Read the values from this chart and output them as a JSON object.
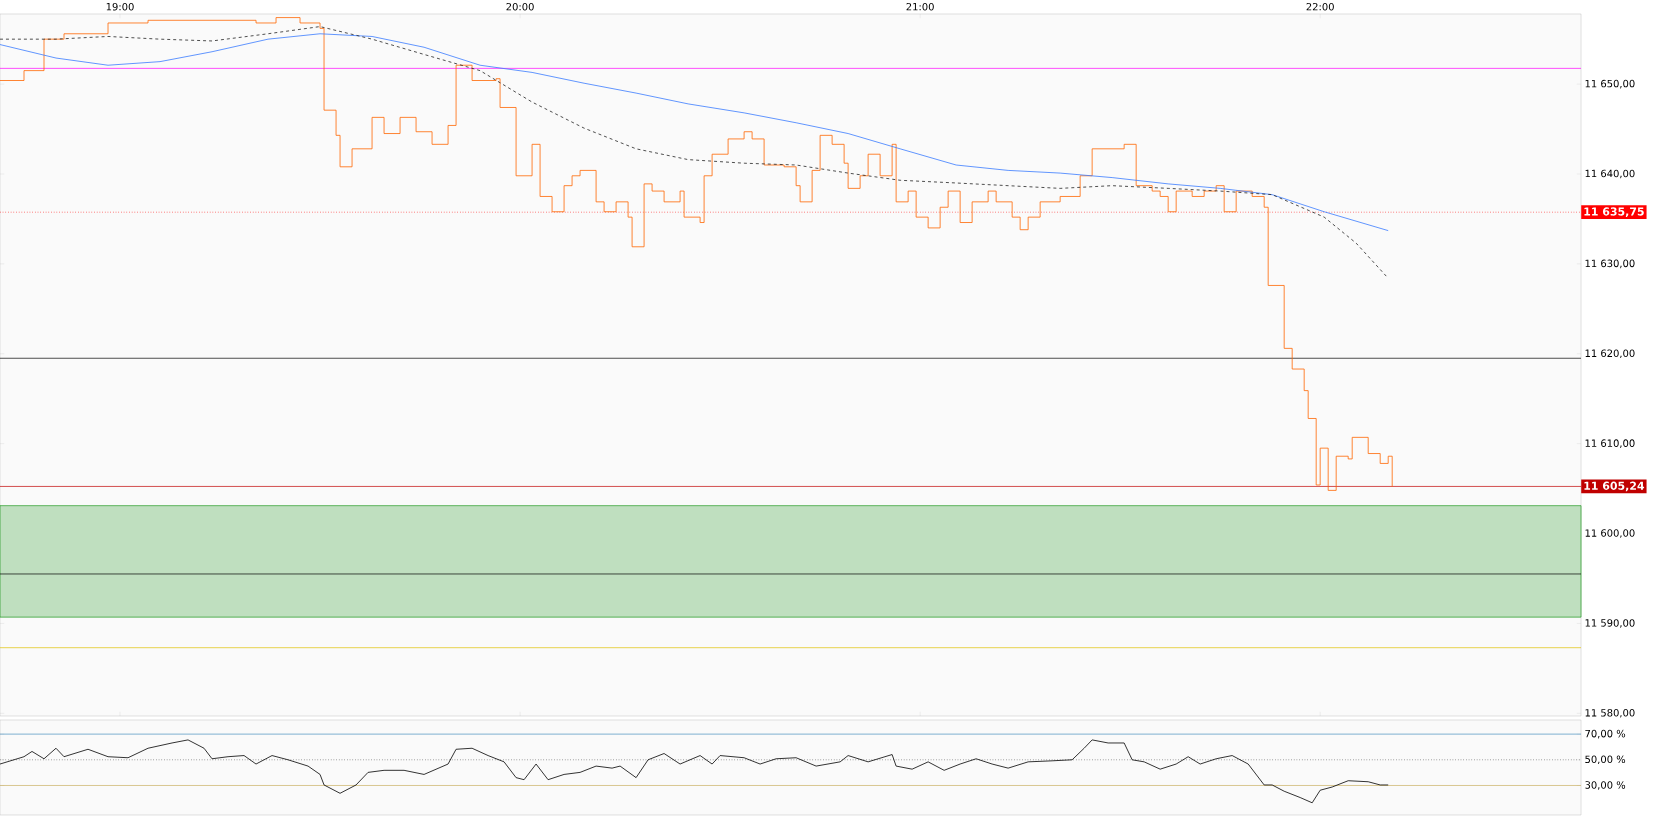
{
  "chart_data": [
    {
      "type": "step",
      "xlim": [
        18.7,
        22.652
      ],
      "ylim": [
        11579.7,
        11657.8
      ],
      "xticks": [
        {
          "value": 19,
          "label": "19:00"
        },
        {
          "value": 20,
          "label": "20:00"
        },
        {
          "value": 21,
          "label": "21:00"
        },
        {
          "value": 22,
          "label": "22:00"
        }
      ],
      "yticks": [
        {
          "value": 11580,
          "label": "11 580,00"
        },
        {
          "value": 11590,
          "label": "11 590,00"
        },
        {
          "value": 11600,
          "label": "11 600,00"
        },
        {
          "value": 11610,
          "label": "11 610,00"
        },
        {
          "value": 11620,
          "label": "11 620,00"
        },
        {
          "value": 11630,
          "label": "11 630,00"
        },
        {
          "value": 11640,
          "label": "11 640,00"
        },
        {
          "value": 11650,
          "label": "11 650,00"
        }
      ],
      "series": [
        {
          "type": "step",
          "color": "#ff6600",
          "x": [
            18.7,
            18.76,
            18.81,
            18.86,
            18.97,
            19.07,
            19.23,
            19.34,
            19.39,
            19.45,
            19.5,
            19.51,
            19.54,
            19.55,
            19.58,
            19.62,
            19.63,
            19.66,
            19.7,
            19.74,
            19.78,
            19.82,
            19.84,
            19.88,
            19.94,
            19.95,
            19.97,
            19.99,
            20.03,
            20.05,
            20.08,
            20.11,
            20.13,
            20.15,
            20.19,
            20.21,
            20.24,
            20.27,
            20.28,
            20.31,
            20.33,
            20.36,
            20.4,
            20.41,
            20.45,
            20.46,
            20.48,
            20.52,
            20.56,
            20.58,
            20.61,
            20.66,
            20.69,
            20.7,
            20.73,
            20.75,
            20.78,
            20.81,
            20.82,
            20.85,
            20.87,
            20.9,
            20.93,
            20.94,
            20.97,
            20.99,
            21.02,
            21.05,
            21.07,
            21.1,
            21.13,
            21.17,
            21.19,
            21.23,
            21.25,
            21.27,
            21.3,
            21.35,
            21.4,
            21.43,
            21.48,
            21.51,
            21.54,
            21.58,
            21.6,
            21.62,
            21.64,
            21.68,
            21.71,
            21.74,
            21.76,
            21.79,
            21.83,
            21.86,
            21.87,
            21.9,
            21.91,
            21.93,
            21.96,
            21.97,
            21.99,
            22.0,
            22.02,
            22.04,
            22.07,
            22.08,
            22.12,
            22.15,
            22.17,
            22.18
          ],
          "values": [
            11650.4,
            11651.5,
            11655.0,
            11655.6,
            11656.8,
            11657.1,
            11657.1,
            11656.8,
            11657.4,
            11656.8,
            11656.2,
            11647.1,
            11644.3,
            11640.8,
            11642.8,
            11642.8,
            11646.3,
            11644.5,
            11646.3,
            11644.7,
            11643.3,
            11645.4,
            11652.1,
            11650.4,
            11650.6,
            11647.4,
            11647.4,
            11639.8,
            11643.3,
            11637.5,
            11635.8,
            11638.7,
            11639.8,
            11640.4,
            11636.9,
            11635.8,
            11636.9,
            11635.2,
            11631.9,
            11638.9,
            11638.1,
            11636.9,
            11638.1,
            11635.2,
            11634.6,
            11639.8,
            11642.2,
            11643.9,
            11644.7,
            11643.9,
            11641.0,
            11640.8,
            11638.7,
            11636.9,
            11640.4,
            11644.3,
            11643.3,
            11641.2,
            11638.4,
            11639.8,
            11642.2,
            11639.8,
            11643.3,
            11636.9,
            11638.1,
            11635.2,
            11634.0,
            11636.3,
            11638.1,
            11634.6,
            11636.9,
            11638.1,
            11636.9,
            11635.2,
            11633.8,
            11635.2,
            11636.9,
            11637.5,
            11639.8,
            11642.8,
            11642.8,
            11643.3,
            11638.7,
            11638.1,
            11637.5,
            11635.8,
            11638.1,
            11637.5,
            11638.1,
            11638.7,
            11635.8,
            11638.1,
            11637.5,
            11636.3,
            11627.6,
            11627.6,
            11620.6,
            11618.3,
            11615.9,
            11612.8,
            11605.4,
            11609.5,
            11604.8,
            11608.6,
            11608.3,
            11610.7,
            11608.9,
            11607.8,
            11608.6,
            11605.2
          ]
        },
        {
          "type": "line",
          "color": "#3a7bff",
          "x": [
            18.7,
            18.84,
            18.97,
            19.1,
            19.23,
            19.37,
            19.5,
            19.63,
            19.76,
            19.9,
            20.03,
            20.16,
            20.29,
            20.42,
            20.56,
            20.69,
            20.82,
            20.95,
            21.09,
            21.22,
            21.35,
            21.48,
            21.62,
            21.75,
            21.88,
            22.01,
            22.17
          ],
          "values": [
            11654.4,
            11652.9,
            11652.1,
            11652.5,
            11653.6,
            11655.0,
            11655.6,
            11655.3,
            11654.1,
            11652.1,
            11651.3,
            11650.1,
            11649.0,
            11647.8,
            11646.8,
            11645.7,
            11644.5,
            11642.8,
            11641.0,
            11640.4,
            11640.1,
            11639.6,
            11638.9,
            11638.4,
            11637.7,
            11635.8,
            11633.7
          ]
        },
        {
          "type": "line",
          "color": "#222222",
          "line_style": "dashed",
          "x": [
            18.7,
            18.84,
            18.97,
            19.1,
            19.23,
            19.37,
            19.5,
            19.63,
            19.76,
            19.9,
            20.03,
            20.16,
            20.29,
            20.42,
            20.56,
            20.69,
            20.82,
            20.95,
            21.09,
            21.22,
            21.35,
            21.48,
            21.62,
            21.75,
            21.88,
            22.01,
            22.09,
            22.17
          ],
          "values": [
            11655.0,
            11655.0,
            11655.3,
            11655.0,
            11654.8,
            11655.6,
            11656.4,
            11655.0,
            11653.3,
            11651.5,
            11648.0,
            11645.1,
            11642.8,
            11641.6,
            11641.2,
            11641.0,
            11640.1,
            11639.3,
            11639.0,
            11638.7,
            11638.4,
            11638.7,
            11638.4,
            11638.1,
            11637.7,
            11635.2,
            11632.3,
            11628.4
          ]
        }
      ],
      "ref_lines": [
        {
          "axis": "y",
          "value": 11651.75,
          "color": "#ff00ff"
        },
        {
          "axis": "y",
          "value": 11635.75,
          "label": "11 635,75",
          "color": "#ff0000",
          "line_style": "dotted"
        },
        {
          "axis": "y",
          "value": 11619.5,
          "color": "#000000"
        },
        {
          "axis": "y",
          "value": 11605.24,
          "label": "11 605,24",
          "color": "#c00000"
        },
        {
          "axis": "y",
          "value": 11595.5,
          "color": "#000000"
        },
        {
          "axis": "y",
          "value": 11587.3,
          "color": "#e0c000"
        }
      ],
      "bands": [
        {
          "axis": "y",
          "from": 11590.7,
          "to": 11603.1,
          "color": "#bfdfbf"
        }
      ]
    },
    {
      "type": "line",
      "xlim": [
        18.7,
        22.652
      ],
      "ylim": [
        7,
        81
      ],
      "tick_labels": "y",
      "yticks": [
        {
          "value": 30,
          "label": "30,00 %"
        },
        {
          "value": 50,
          "label": "50,00 %"
        },
        {
          "value": 70,
          "label": "70,00 %"
        }
      ],
      "series": [
        {
          "color": "#000000",
          "x": [
            18.7,
            18.76,
            18.78,
            18.81,
            18.84,
            18.86,
            18.92,
            18.97,
            19.02,
            19.07,
            19.13,
            19.17,
            19.21,
            19.23,
            19.27,
            19.31,
            19.34,
            19.38,
            19.42,
            19.47,
            19.5,
            19.51,
            19.55,
            19.59,
            19.62,
            19.66,
            19.71,
            19.76,
            19.82,
            19.84,
            19.88,
            19.92,
            19.96,
            19.99,
            20.01,
            20.04,
            20.07,
            20.11,
            20.15,
            20.19,
            20.23,
            20.25,
            20.29,
            20.32,
            20.36,
            20.4,
            20.45,
            20.48,
            20.5,
            20.56,
            20.6,
            20.64,
            20.69,
            20.74,
            20.8,
            20.82,
            20.87,
            20.93,
            20.94,
            20.98,
            21.02,
            21.06,
            21.1,
            21.14,
            21.18,
            21.22,
            21.27,
            21.33,
            21.38,
            21.41,
            21.43,
            21.47,
            21.51,
            21.53,
            21.56,
            21.6,
            21.64,
            21.67,
            21.7,
            21.74,
            21.78,
            21.82,
            21.86,
            21.88,
            21.91,
            21.95,
            21.98,
            22.0,
            22.03,
            22.07,
            22.12,
            22.15,
            22.17
          ],
          "values": [
            46.7,
            52.4,
            56.5,
            50.8,
            59.0,
            52.4,
            58.2,
            52.4,
            51.6,
            59.0,
            63.1,
            65.5,
            59.0,
            50.8,
            52.4,
            53.3,
            46.7,
            53.3,
            50.0,
            45.1,
            38.6,
            30.4,
            23.9,
            30.4,
            40.2,
            41.8,
            41.8,
            38.6,
            46.7,
            58.2,
            59.0,
            53.3,
            48.4,
            36.1,
            34.5,
            46.7,
            34.5,
            38.6,
            40.2,
            45.1,
            43.5,
            45.1,
            36.1,
            50.0,
            54.9,
            46.7,
            53.3,
            46.7,
            53.3,
            51.6,
            46.7,
            50.8,
            51.6,
            45.1,
            48.4,
            53.3,
            48.4,
            54.1,
            45.1,
            42.7,
            48.4,
            41.8,
            46.7,
            50.8,
            46.7,
            43.5,
            48.4,
            49.2,
            50.0,
            59.0,
            65.5,
            63.1,
            63.1,
            50.0,
            48.4,
            42.7,
            46.7,
            52.4,
            46.7,
            50.8,
            53.3,
            46.7,
            30.4,
            30.4,
            25.5,
            20.6,
            16.5,
            26.3,
            28.8,
            33.7,
            32.9,
            30.4,
            30.4
          ]
        }
      ],
      "ref_lines": [
        {
          "axis": "y",
          "value": 70,
          "color": "#4a90c0"
        },
        {
          "axis": "y",
          "value": 50,
          "color": "#444444",
          "line_style": "dotted"
        },
        {
          "axis": "y",
          "value": 30,
          "color": "#c8b060"
        }
      ]
    }
  ]
}
